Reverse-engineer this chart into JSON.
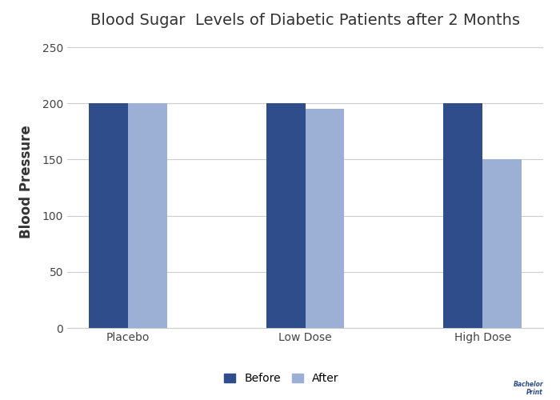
{
  "title": "Blood Sugar  Levels of Diabetic Patients after 2 Months",
  "ylabel": "Blood Pressure",
  "categories": [
    "Placebo",
    "Low Dose",
    "High Dose"
  ],
  "before_values": [
    200,
    200,
    200
  ],
  "after_values": [
    200,
    195,
    150
  ],
  "before_color": "#2e4d8a",
  "after_color": "#9cafd4",
  "ylim": [
    0,
    260
  ],
  "yticks": [
    0,
    50,
    100,
    150,
    200,
    250
  ],
  "bar_width": 0.22,
  "legend_labels": [
    "Before",
    "After"
  ],
  "background_color": "#ffffff",
  "grid_color": "#cccccc",
  "title_fontsize": 14,
  "label_fontsize": 12,
  "tick_fontsize": 10
}
